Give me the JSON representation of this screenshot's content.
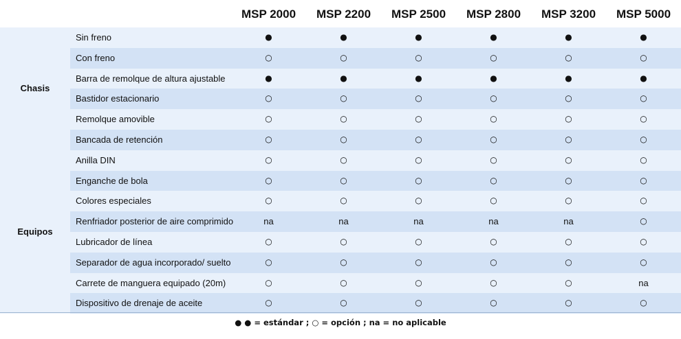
{
  "columns": [
    "MSP 2000",
    "MSP 2200",
    "MSP 2500",
    "MSP 2800",
    "MSP 3200",
    "MSP 5000"
  ],
  "groups": [
    {
      "name": "Chasis",
      "rows": [
        {
          "feature": "Sin freno",
          "values": [
            "●",
            "●",
            "●",
            "●",
            "●",
            "●"
          ]
        },
        {
          "feature": "Con freno",
          "values": [
            "○",
            "○",
            "○",
            "○",
            "○",
            "○"
          ]
        },
        {
          "feature": "Barra de remolque de altura ajustable",
          "values": [
            "●",
            "●",
            "●",
            "●",
            "●",
            "●"
          ]
        },
        {
          "feature": "Bastidor estacionario",
          "values": [
            "○",
            "○",
            "○",
            "○",
            "○",
            "○"
          ]
        },
        {
          "feature": "Remolque amovible",
          "values": [
            "○",
            "○",
            "○",
            "○",
            "○",
            "○"
          ]
        },
        {
          "feature": "Bancada de retención",
          "values": [
            "○",
            "○",
            "○",
            "○",
            "○",
            "○"
          ]
        }
      ]
    },
    {
      "name": "Equipos",
      "rows": [
        {
          "feature": "Anilla DIN",
          "values": [
            "○",
            "○",
            "○",
            "○",
            "○",
            "○"
          ]
        },
        {
          "feature": "Enganche de bola",
          "values": [
            "○",
            "○",
            "○",
            "○",
            "○",
            "○"
          ]
        },
        {
          "feature": "Colores especiales",
          "values": [
            "○",
            "○",
            "○",
            "○",
            "○",
            "○"
          ]
        },
        {
          "feature": "Renfriador posterior de aire comprimido",
          "values": [
            "na",
            "na",
            "na",
            "na",
            "na",
            "○"
          ]
        },
        {
          "feature": "Lubricador de línea",
          "values": [
            "○",
            "○",
            "○",
            "○",
            "○",
            "○"
          ]
        },
        {
          "feature": "Separador de agua incorporado/ suelto",
          "values": [
            "○",
            "○",
            "○",
            "○",
            "○",
            "○"
          ]
        },
        {
          "feature": "Carrete de manguera equipado (20m)",
          "values": [
            "○",
            "○",
            "○",
            "○",
            "○",
            "na"
          ]
        },
        {
          "feature": "Dispositivo de drenaje de aceite",
          "values": [
            "○",
            "○",
            "○",
            "○",
            "○",
            "○"
          ]
        }
      ]
    }
  ],
  "legend": {
    "symbols": "● ●",
    "text": " = estándar ; ○ = opción ; na = no aplicable"
  }
}
